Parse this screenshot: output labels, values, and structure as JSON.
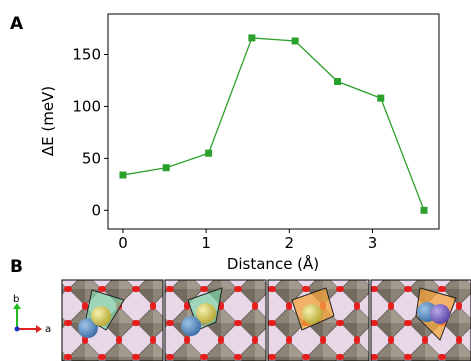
{
  "panels": {
    "a_label": "A",
    "b_label": "B"
  },
  "chart_data": {
    "type": "line",
    "xlabel": "Distance (Å)",
    "ylabel": "ΔE (meV)",
    "x": [
      0,
      0.52,
      1.03,
      1.55,
      2.07,
      2.58,
      3.1,
      3.62
    ],
    "series": [
      {
        "values": [
          34,
          41,
          55,
          166,
          163,
          124,
          108,
          0
        ]
      }
    ],
    "xlim": [
      -0.18,
      3.8
    ],
    "ylim": [
      -18,
      189
    ],
    "x_ticks": [
      0,
      1,
      2,
      3
    ],
    "x_tick_labels": [
      "0",
      "1",
      "2",
      "3"
    ],
    "y_ticks": [
      0,
      50,
      100,
      150
    ],
    "y_tick_labels": [
      "0",
      "50",
      "100",
      "150"
    ],
    "grid": false,
    "color": "#2ca02c"
  },
  "structure_panel": {
    "axis_b_label": "b",
    "axis_a_label": "a",
    "axis_b_color": "#22bb22",
    "axis_a_color": "#e02020",
    "frame_count": 4
  }
}
